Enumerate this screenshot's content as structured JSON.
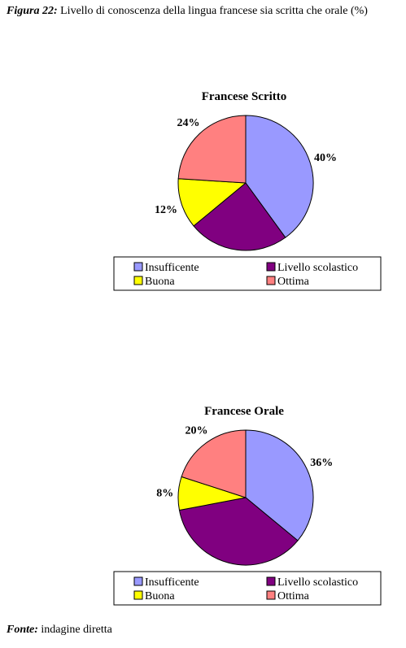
{
  "caption": {
    "label": "Figura 22:",
    "text": " Livello di conoscenza della lingua francese sia scritta che orale (%)"
  },
  "source": {
    "label": "Fonte:",
    "text": " indagine diretta"
  },
  "chart_data": [
    {
      "type": "pie",
      "title": "Francese Scritto",
      "categories": [
        "Insufficente",
        "Livello scolastico",
        "Buona",
        "Ottima"
      ],
      "values": [
        40,
        24,
        12,
        24
      ],
      "labels": [
        "40%",
        "24%",
        "12%",
        "24%"
      ],
      "colors": [
        "#9999ff",
        "#800080",
        "#ffff00",
        "#ff8080"
      ],
      "legend": "bottom"
    },
    {
      "type": "pie",
      "title": "Francese Orale",
      "categories": [
        "Insufficente",
        "Livello scolastico",
        "Buona",
        "Ottima"
      ],
      "values": [
        36,
        36,
        8,
        20
      ],
      "labels": [
        "36%",
        "36%",
        "8%",
        "20%"
      ],
      "colors": [
        "#9999ff",
        "#800080",
        "#ffff00",
        "#ff8080"
      ],
      "legend": "bottom"
    }
  ]
}
